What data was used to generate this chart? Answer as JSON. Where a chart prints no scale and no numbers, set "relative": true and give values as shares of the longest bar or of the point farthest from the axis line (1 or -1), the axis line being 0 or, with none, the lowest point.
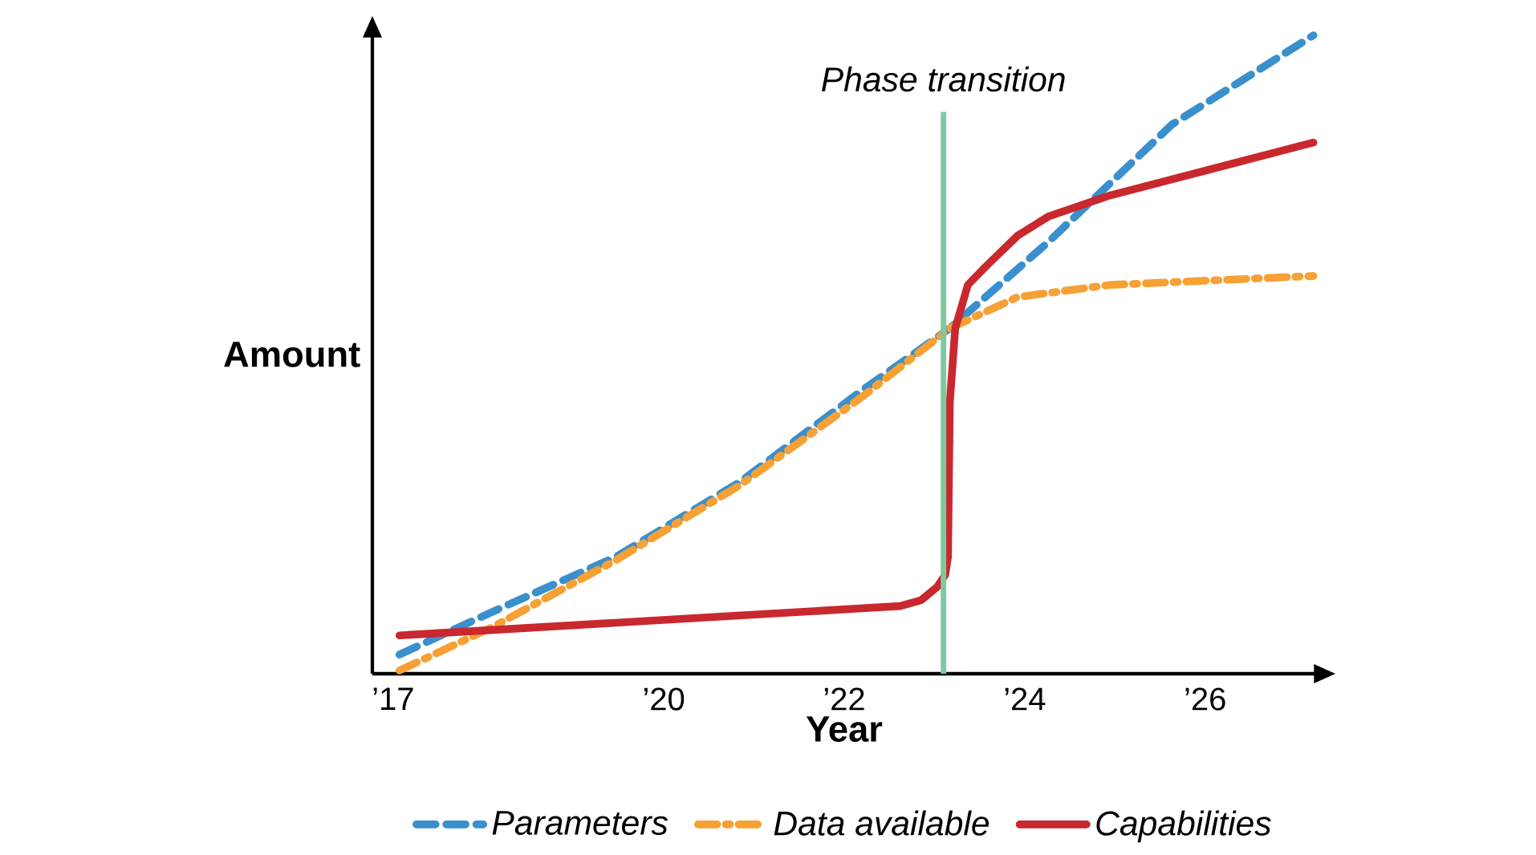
{
  "chart_data": {
    "type": "line",
    "xlabel": "Year",
    "ylabel": "Amount",
    "relative": true,
    "xlim": [
      2016.77,
      2027.23
    ],
    "xticks": [
      {
        "value": 2017,
        "label": "’17"
      },
      {
        "value": 2020,
        "label": "’20"
      },
      {
        "value": 2022,
        "label": "’22"
      },
      {
        "value": 2024,
        "label": "’24"
      },
      {
        "value": 2026,
        "label": "’26"
      }
    ],
    "series": [
      {
        "name": "Parameters",
        "color": "#3a8fcd",
        "line_style": "dashed",
        "x": [
          2017.07,
          2018.1,
          2019.47,
          2020.84,
          2022.21,
          2023.17,
          2024.26,
          2025.63,
          2027.2
        ],
        "values": [
          0.03,
          0.097,
          0.183,
          0.3,
          0.445,
          0.541,
          0.676,
          0.86,
          1
        ]
      },
      {
        "name": "Data available",
        "color": "#f7a034",
        "line_style": "dashdot",
        "x": [
          2017.07,
          2018.1,
          2019.47,
          2020.84,
          2022.21,
          2023.17,
          2023.92,
          2024.94,
          2027.2
        ],
        "values": [
          0.005,
          0.073,
          0.178,
          0.295,
          0.435,
          0.541,
          0.59,
          0.609,
          0.623
        ]
      },
      {
        "name": "Capabilities",
        "color": "#c8282e",
        "line_style": "solid",
        "x": [
          2017.07,
          2022.62,
          2022.85,
          2023.03,
          2023.12,
          2023.15,
          2023.17,
          2023.23,
          2023.37,
          2023.57,
          2023.92,
          2024.26,
          2024.94,
          2027.2
        ],
        "values": [
          0.06,
          0.106,
          0.115,
          0.136,
          0.155,
          0.183,
          0.425,
          0.541,
          0.609,
          0.638,
          0.686,
          0.716,
          0.749,
          0.832
        ]
      }
    ],
    "ref_lines": [
      {
        "axis": "x",
        "value": 2023.1,
        "label": "Phase transition",
        "color": "#7fc8a0"
      }
    ],
    "legend": "bottom",
    "grid": false
  }
}
